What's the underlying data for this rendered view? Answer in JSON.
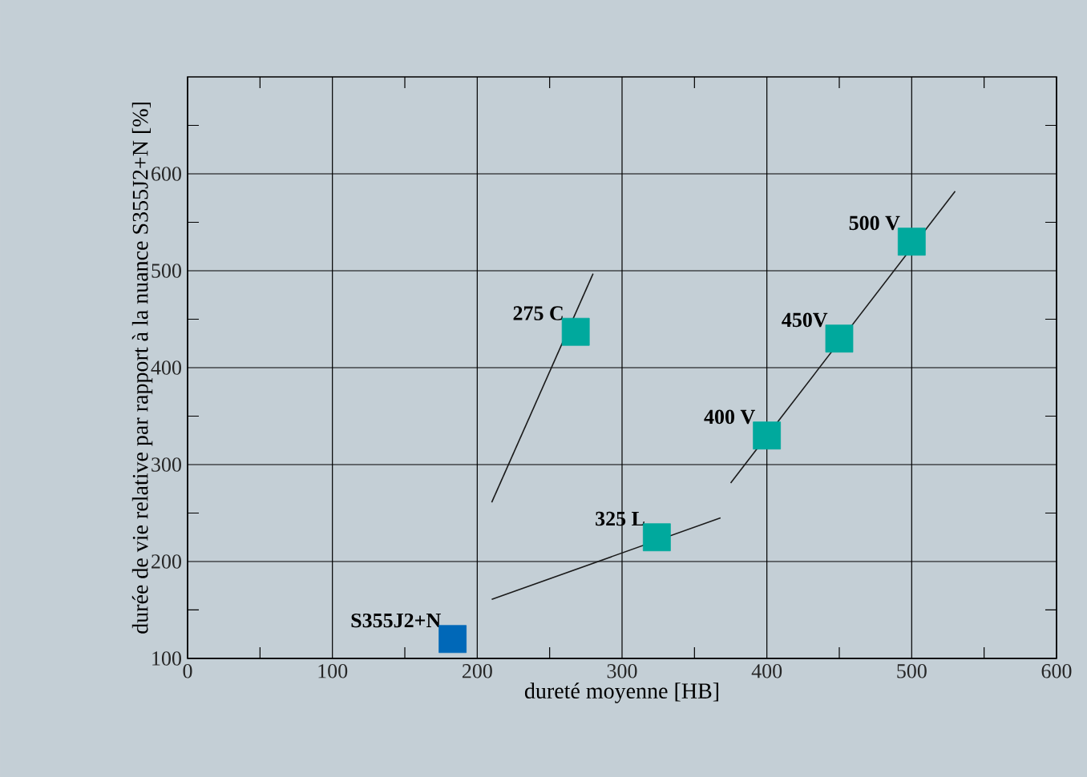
{
  "chart_data": {
    "type": "scatter",
    "xlabel": "dureté moyenne [HB]",
    "ylabel": "durée de vie relative par rapport à la nuance S355J2+N [%]",
    "xlim": [
      0,
      600
    ],
    "ylim": [
      100,
      700
    ],
    "xticks": [
      0,
      {
        "value": 50,
        "label": null
      },
      100,
      {
        "value": 150,
        "label": null
      },
      200,
      {
        "value": 250,
        "label": null
      },
      300,
      {
        "value": 350,
        "label": null
      },
      400,
      {
        "value": 450,
        "label": null
      },
      500,
      {
        "value": 550,
        "label": null
      },
      600
    ],
    "yticks": [
      100,
      {
        "value": 150,
        "label": null
      },
      200,
      {
        "value": 250,
        "label": null
      },
      300,
      {
        "value": 350,
        "label": null
      },
      400,
      {
        "value": 450,
        "label": null
      },
      500,
      {
        "value": 550,
        "label": null
      },
      600,
      {
        "value": 650,
        "label": null
      }
    ],
    "grid": true,
    "marker": "square",
    "series": [
      {
        "x": [
          183,
          268,
          324,
          400,
          450,
          500
        ],
        "values": [
          120,
          437,
          225,
          330,
          430,
          530
        ],
        "colors": [
          "#0068b8",
          "#00a99d",
          "#00a99d",
          "#00a99d",
          "#00a99d",
          "#00a99d"
        ]
      },
      {
        "type": "line",
        "marker": "none",
        "x": [
          210,
          368
        ],
        "values": [
          161,
          245
        ],
        "color": "#1a1a1a"
      },
      {
        "type": "line",
        "marker": "none",
        "x": [
          375,
          530
        ],
        "values": [
          281,
          582
        ],
        "color": "#1a1a1a"
      },
      {
        "type": "line",
        "marker": "none",
        "x": [
          210,
          280
        ],
        "values": [
          261,
          497
        ],
        "color": "#1a1a1a"
      }
    ],
    "annotations": [
      {
        "text": "S355J2+N",
        "x": 183,
        "y": 120
      },
      {
        "text": "275 C",
        "x": 268,
        "y": 437
      },
      {
        "text": "325 L",
        "x": 324,
        "y": 225
      },
      {
        "text": "400 V",
        "x": 400,
        "y": 330
      },
      {
        "text": "450V",
        "x": 450,
        "y": 430
      },
      {
        "text": "500 V",
        "x": 500,
        "y": 530
      }
    ]
  }
}
